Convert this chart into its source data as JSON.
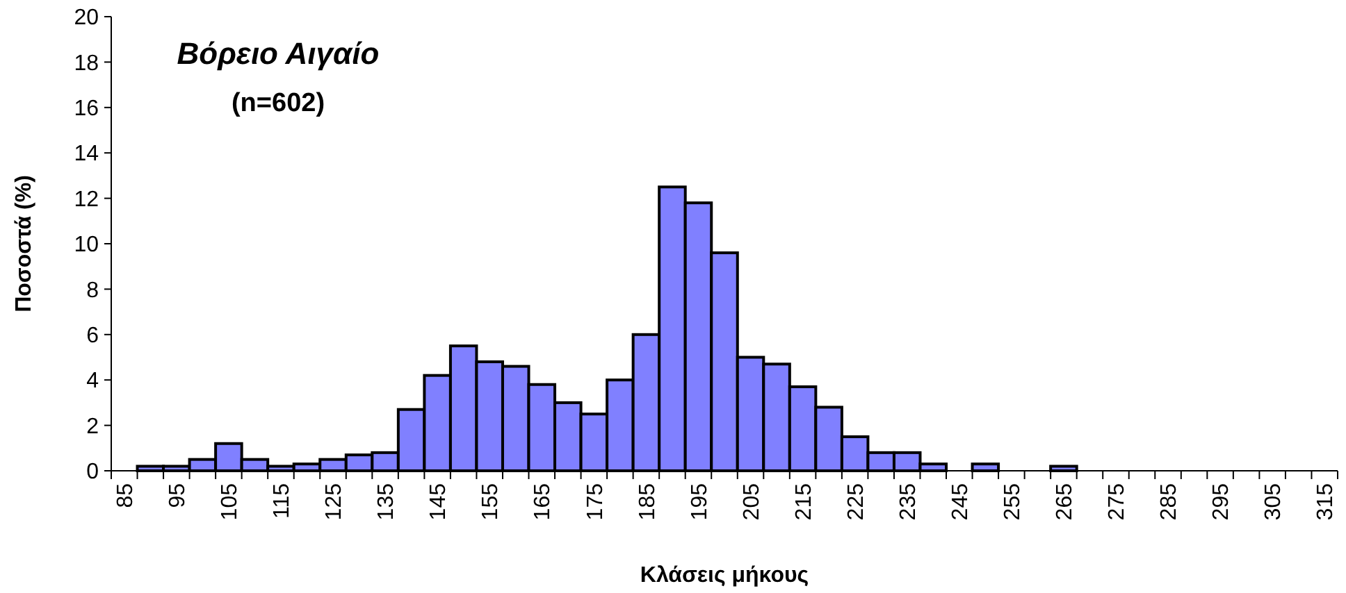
{
  "chart_data": {
    "type": "bar",
    "title": "Βόρειο Αιγαίο",
    "subtitle": "(n=602)",
    "xlabel": "Κλάσεις μήκους",
    "ylabel": "Ποσοστά (%)",
    "categories": [
      "85",
      null,
      "95",
      null,
      "105",
      null,
      "115",
      null,
      "125",
      null,
      "135",
      null,
      "145",
      null,
      "155",
      null,
      "165",
      null,
      "175",
      null,
      "185",
      null,
      "195",
      null,
      "205",
      null,
      "215",
      null,
      "225",
      null,
      "235",
      null,
      "245",
      null,
      "255",
      null,
      "265",
      null,
      "275",
      null,
      "285",
      null,
      "295",
      null,
      "305",
      null,
      "315"
    ],
    "values": [
      0,
      0.2,
      0.2,
      0.5,
      1.2,
      0.5,
      0.2,
      0.3,
      0.5,
      0.7,
      0.8,
      2.7,
      4.2,
      5.5,
      4.8,
      4.6,
      3.8,
      3.0,
      2.5,
      4.0,
      6.0,
      12.5,
      11.8,
      9.6,
      5.0,
      4.7,
      3.7,
      2.8,
      1.5,
      0.8,
      0.8,
      0.3,
      0,
      0.3,
      0,
      0,
      0.2,
      0,
      0,
      0,
      0,
      0,
      0,
      0,
      0,
      0,
      0
    ],
    "color": "#8080ff",
    "ylim": [
      0,
      20
    ],
    "yticks": [
      0,
      2,
      4,
      6,
      8,
      10,
      12,
      14,
      16,
      18,
      20
    ],
    "grid": false
  }
}
